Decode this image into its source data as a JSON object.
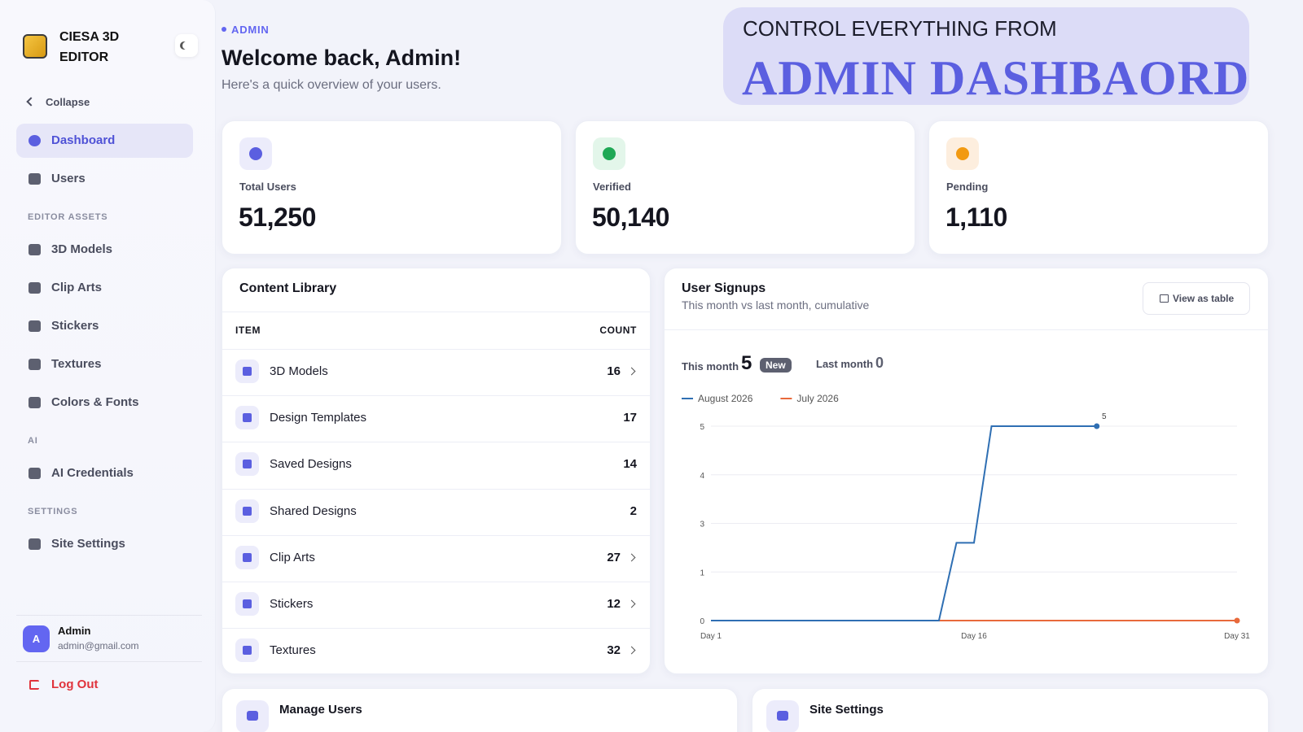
{
  "sidebar": {
    "brand": "CIESA 3D EDITOR",
    "collapse": "Collapse",
    "sections": [
      {
        "items": [
          "Dashboard",
          "Users"
        ]
      },
      {
        "heading": "EDITOR ASSETS",
        "items": [
          "3D Models",
          "Clip Arts",
          "Stickers",
          "Textures",
          "Colors & Fonts"
        ]
      },
      {
        "heading": "AI",
        "items": [
          "AI Credentials"
        ]
      },
      {
        "heading": "SETTINGS",
        "items": [
          "Site Settings"
        ]
      }
    ],
    "user": {
      "initial": "A",
      "name": "Admin",
      "email": "admin@gmail.com"
    },
    "logout": "Log Out"
  },
  "header": {
    "eyebrow": "ADMIN",
    "title": "Welcome back, Admin!",
    "subtitle": "Here's a quick overview of your users."
  },
  "banner": {
    "line1": "CONTROL EVERYTHING FROM",
    "line2": "ADMIN DASHBAORD"
  },
  "stats": [
    {
      "label": "Total Users",
      "value": "51,250"
    },
    {
      "label": "Verified",
      "value": "50,140"
    },
    {
      "label": "Pending",
      "value": "1,110"
    }
  ],
  "content_library": {
    "title": "Content Library",
    "columns": [
      "ITEM",
      "COUNT"
    ],
    "rows": [
      [
        "3D Models",
        "16"
      ],
      [
        "Design Templates",
        "17"
      ],
      [
        "Saved Designs",
        "14"
      ],
      [
        "Shared Designs",
        "2"
      ],
      [
        "Clip Arts",
        "27"
      ],
      [
        "Stickers",
        "12"
      ],
      [
        "Textures",
        "32"
      ]
    ]
  },
  "signups": {
    "view_table": "View as table",
    "this_month_label": "This month",
    "this_month": "5",
    "badge": "New",
    "last_month_label": "Last month",
    "last_month": "0"
  },
  "bottom_cards": [
    "Manage Users",
    "Site Settings"
  ],
  "chart_data": {
    "type": "line",
    "title": "User Signups",
    "subtitle": "This month vs last month, cumulative",
    "x": [
      1,
      2,
      3,
      4,
      5,
      6,
      7,
      8,
      9,
      10,
      11,
      12,
      13,
      14,
      15,
      16,
      17,
      18,
      19,
      20,
      21,
      22,
      23,
      24,
      25,
      26,
      27,
      28,
      29,
      30,
      31
    ],
    "xlim": [
      1,
      31
    ],
    "xticks": [
      {
        "value": 1,
        "label": "Day 1"
      },
      {
        "value": 16,
        "label": "Day 16"
      },
      {
        "value": 31,
        "label": "Day 31"
      }
    ],
    "ylim": [
      0,
      5
    ],
    "yticks": [
      0,
      {
        "value": 1.25,
        "label": "1"
      },
      {
        "value": 2.5,
        "label": "3"
      },
      {
        "value": 3.75,
        "label": "4"
      },
      5
    ],
    "grid": true,
    "series": [
      {
        "name": "August 2026",
        "color": "#2f6fb3",
        "values": [
          0,
          0,
          0,
          0,
          0,
          0,
          0,
          0,
          0,
          0,
          0,
          0,
          0,
          0,
          2,
          2,
          5,
          5,
          5,
          5,
          5,
          5,
          5,
          null,
          null,
          null,
          null,
          null,
          null,
          null,
          null
        ]
      },
      {
        "name": "July 2026",
        "color": "#e8693b",
        "values": [
          0,
          0,
          0,
          0,
          0,
          0,
          0,
          0,
          0,
          0,
          0,
          0,
          0,
          0,
          0,
          0,
          0,
          0,
          0,
          0,
          0,
          0,
          0,
          0,
          0,
          0,
          0,
          0,
          0,
          0,
          0
        ]
      }
    ]
  }
}
